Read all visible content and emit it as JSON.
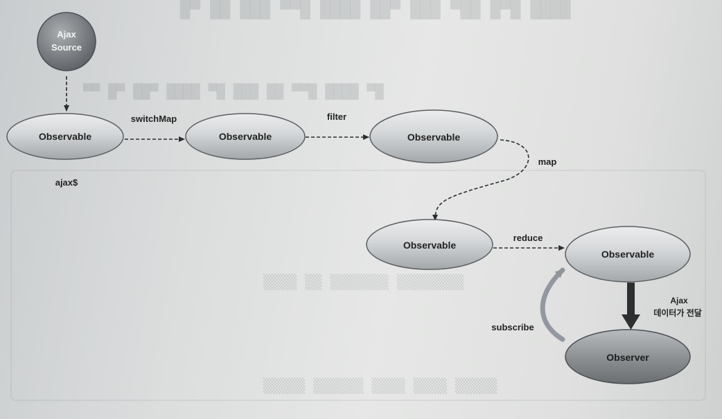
{
  "nodes": {
    "source": {
      "line1": "Ajax",
      "line2": "Source"
    },
    "obs1": {
      "label": "Observable"
    },
    "obs2": {
      "label": "Observable"
    },
    "obs3": {
      "label": "Observable"
    },
    "obs4": {
      "label": "Observable"
    },
    "obs5": {
      "label": "Observable"
    },
    "observer": {
      "label": "Observer"
    }
  },
  "labels": {
    "ajax_var": "ajax$",
    "switchmap": "switchMap",
    "filter": "filter",
    "map": "map",
    "reduce": "reduce",
    "subscribe": "subscribe",
    "ajax_delivery_line1": "Ajax",
    "ajax_delivery_line2": "데이터가 전달"
  },
  "colors": {
    "node_fill_light": "#e4e6e7",
    "node_fill_dark": "#9ea2a5",
    "source_fill": "#7a7e82",
    "observer_fill": "#8a8e91",
    "arrow": "#2a2c2e",
    "subscribe_arrow": "#909598"
  }
}
